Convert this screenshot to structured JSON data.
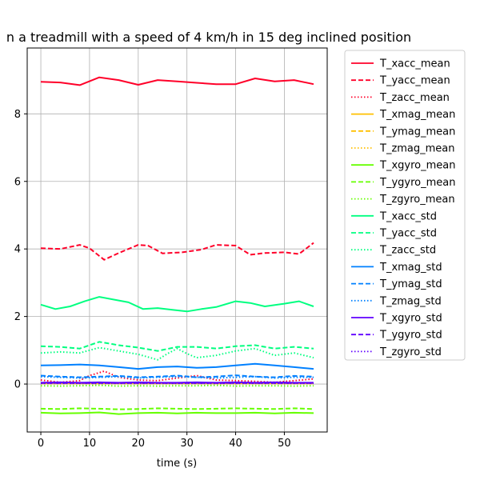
{
  "chart_data": {
    "type": "line",
    "title": "n a treadmill with a speed of 4 km/h in 15 deg inclined position",
    "xlabel": "time (s)",
    "ylabel": "",
    "xlim": [
      -2.8,
      58.8
    ],
    "ylim": [
      -1.42,
      9.95
    ],
    "xticks": [
      0,
      10,
      20,
      30,
      40,
      50
    ],
    "yticks": [
      0,
      2,
      4,
      6,
      8
    ],
    "grid": true,
    "legend_position": "outside-right",
    "series": [
      {
        "name": "T_xacc_mean",
        "color": "#ff0029",
        "dash": "solid",
        "x": [
          0,
          4,
          8,
          12,
          16,
          20,
          24,
          28,
          32,
          36,
          40,
          44,
          48,
          52,
          56
        ],
        "y": [
          8.95,
          8.93,
          8.85,
          9.08,
          9.0,
          8.86,
          9.0,
          8.96,
          8.92,
          8.88,
          8.88,
          9.05,
          8.96,
          9.0,
          8.88
        ]
      },
      {
        "name": "T_yacc_mean",
        "color": "#ff0029",
        "dash": "dashed",
        "x": [
          0,
          4,
          8,
          10,
          13,
          16,
          20,
          22,
          25,
          29,
          33,
          36,
          40,
          43,
          46,
          50,
          53,
          56
        ],
        "y": [
          4.02,
          4.0,
          4.12,
          4.02,
          3.68,
          3.88,
          4.12,
          4.1,
          3.87,
          3.9,
          3.98,
          4.12,
          4.1,
          3.83,
          3.88,
          3.9,
          3.85,
          4.18
        ]
      },
      {
        "name": "T_zacc_mean",
        "color": "#ff0029",
        "dash": "dotted",
        "x": [
          0,
          4,
          8,
          10,
          13,
          16,
          20,
          24,
          28,
          32,
          36,
          40,
          44,
          48,
          52,
          56
        ],
        "y": [
          0.12,
          0.05,
          0.1,
          0.25,
          0.38,
          0.2,
          0.12,
          0.1,
          0.18,
          0.25,
          0.12,
          0.1,
          0.08,
          0.05,
          0.1,
          0.15
        ]
      },
      {
        "name": "T_xmag_mean",
        "color": "#ffc000",
        "dash": "solid",
        "x": [
          0,
          56
        ],
        "y": [
          0.02,
          0.02
        ]
      },
      {
        "name": "T_ymag_mean",
        "color": "#ffc000",
        "dash": "dashed",
        "x": [
          0,
          56
        ],
        "y": [
          0.02,
          0.02
        ]
      },
      {
        "name": "T_zmag_mean",
        "color": "#ffc000",
        "dash": "dotted",
        "x": [
          0,
          56
        ],
        "y": [
          0.02,
          0.02
        ]
      },
      {
        "name": "T_xgyro_mean",
        "color": "#66ff00",
        "dash": "solid",
        "x": [
          0,
          4,
          8,
          12,
          16,
          20,
          24,
          28,
          32,
          36,
          40,
          44,
          48,
          52,
          56
        ],
        "y": [
          -0.85,
          -0.87,
          -0.86,
          -0.84,
          -0.89,
          -0.86,
          -0.85,
          -0.87,
          -0.85,
          -0.86,
          -0.86,
          -0.85,
          -0.87,
          -0.85,
          -0.86
        ]
      },
      {
        "name": "T_ygyro_mean",
        "color": "#66ff00",
        "dash": "dashed",
        "x": [
          0,
          4,
          8,
          12,
          16,
          20,
          24,
          28,
          32,
          36,
          40,
          44,
          48,
          52,
          56
        ],
        "y": [
          -0.73,
          -0.74,
          -0.72,
          -0.73,
          -0.75,
          -0.74,
          -0.72,
          -0.73,
          -0.74,
          -0.73,
          -0.72,
          -0.73,
          -0.74,
          -0.72,
          -0.74
        ]
      },
      {
        "name": "T_zgyro_mean",
        "color": "#66ff00",
        "dash": "dotted",
        "x": [
          0,
          4,
          8,
          12,
          16,
          20,
          24,
          28,
          32,
          36,
          40,
          44,
          48,
          52,
          56
        ],
        "y": [
          -0.05,
          -0.06,
          -0.05,
          -0.04,
          -0.06,
          -0.05,
          -0.06,
          -0.05,
          -0.05,
          -0.04,
          -0.06,
          -0.05,
          -0.05,
          -0.06,
          -0.05
        ]
      },
      {
        "name": "T_xacc_std",
        "color": "#00ff80",
        "dash": "solid",
        "x": [
          0,
          3,
          6,
          9,
          12,
          15,
          18,
          21,
          24,
          27,
          30,
          33,
          36,
          40,
          43,
          46,
          50,
          53,
          56
        ],
        "y": [
          2.35,
          2.22,
          2.3,
          2.45,
          2.58,
          2.5,
          2.42,
          2.22,
          2.25,
          2.2,
          2.15,
          2.22,
          2.28,
          2.45,
          2.4,
          2.3,
          2.38,
          2.45,
          2.3
        ]
      },
      {
        "name": "T_yacc_std",
        "color": "#00ff80",
        "dash": "dashed",
        "x": [
          0,
          4,
          8,
          12,
          16,
          20,
          24,
          28,
          32,
          36,
          40,
          44,
          48,
          52,
          56
        ],
        "y": [
          1.12,
          1.1,
          1.05,
          1.25,
          1.15,
          1.08,
          0.98,
          1.1,
          1.1,
          1.05,
          1.12,
          1.15,
          1.05,
          1.1,
          1.05
        ]
      },
      {
        "name": "T_zacc_std",
        "color": "#00ff80",
        "dash": "dotted",
        "x": [
          0,
          4,
          8,
          12,
          16,
          20,
          24,
          26,
          28,
          30,
          32,
          36,
          40,
          44,
          48,
          52,
          56
        ],
        "y": [
          0.92,
          0.95,
          0.92,
          1.08,
          0.98,
          0.88,
          0.72,
          0.9,
          1.05,
          0.9,
          0.78,
          0.85,
          0.98,
          1.05,
          0.85,
          0.92,
          0.78
        ]
      },
      {
        "name": "T_xmag_std",
        "color": "#0080ff",
        "dash": "solid",
        "x": [
          0,
          4,
          8,
          12,
          16,
          20,
          24,
          28,
          32,
          36,
          40,
          44,
          48,
          52,
          56
        ],
        "y": [
          0.55,
          0.56,
          0.58,
          0.55,
          0.5,
          0.45,
          0.5,
          0.52,
          0.48,
          0.5,
          0.55,
          0.6,
          0.55,
          0.5,
          0.45
        ]
      },
      {
        "name": "T_ymag_std",
        "color": "#0080ff",
        "dash": "dashed",
        "x": [
          0,
          4,
          8,
          12,
          16,
          20,
          24,
          28,
          32,
          36,
          40,
          44,
          48,
          52,
          56
        ],
        "y": [
          0.25,
          0.22,
          0.2,
          0.22,
          0.24,
          0.2,
          0.22,
          0.25,
          0.2,
          0.22,
          0.26,
          0.22,
          0.2,
          0.24,
          0.22
        ]
      },
      {
        "name": "T_zmag_std",
        "color": "#0080ff",
        "dash": "dotted",
        "x": [
          0,
          4,
          8,
          12,
          16,
          20,
          24,
          28,
          32,
          36,
          40,
          44,
          48,
          52,
          56
        ],
        "y": [
          0.22,
          0.2,
          0.18,
          0.2,
          0.22,
          0.18,
          0.2,
          0.22,
          0.2,
          0.18,
          0.2,
          0.22,
          0.18,
          0.2,
          0.2
        ]
      },
      {
        "name": "T_xgyro_std",
        "color": "#6000ff",
        "dash": "solid",
        "x": [
          0,
          4,
          8,
          12,
          16,
          20,
          24,
          28,
          32,
          36,
          40,
          44,
          48,
          52,
          56
        ],
        "y": [
          0.04,
          0.05,
          0.04,
          0.05,
          0.04,
          0.05,
          0.04,
          0.04,
          0.05,
          0.04,
          0.05,
          0.04,
          0.05,
          0.04,
          0.04
        ]
      },
      {
        "name": "T_ygyro_std",
        "color": "#6000ff",
        "dash": "dashed",
        "x": [
          0,
          56
        ],
        "y": [
          0.03,
          0.03
        ]
      },
      {
        "name": "T_zgyro_std",
        "color": "#6000ff",
        "dash": "dotted",
        "x": [
          0,
          56
        ],
        "y": [
          0.02,
          0.02
        ]
      }
    ]
  }
}
